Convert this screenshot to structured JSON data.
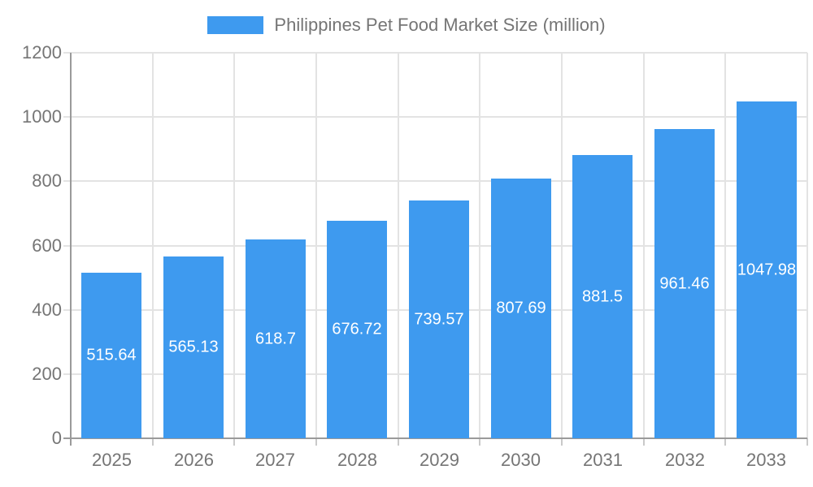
{
  "chart_data": {
    "type": "bar",
    "title": "Philippines Pet Food Market Size (million)",
    "categories": [
      "2025",
      "2026",
      "2027",
      "2028",
      "2029",
      "2030",
      "2031",
      "2032",
      "2033"
    ],
    "values": [
      515.64,
      565.13,
      618.7,
      676.72,
      739.57,
      807.69,
      881.5,
      961.46,
      1047.98
    ],
    "value_labels": [
      "515.64",
      "565.13",
      "618.7",
      "676.72",
      "739.57",
      "807.69",
      "881.5",
      "961.46",
      "1047.98"
    ],
    "xlabel": "",
    "ylabel": "",
    "ylim": [
      0,
      1200
    ],
    "yticks": [
      0,
      200,
      400,
      600,
      800,
      1000,
      1200
    ],
    "grid": true,
    "legend_position": "top",
    "series_name": "Philippines Pet Food Market Size (million)",
    "colors": {
      "bar": "#3E9AEF",
      "grid": "#e3e3e3",
      "axis": "#9a9a9a",
      "tick_text": "#757575",
      "value_label": "#ffffff",
      "background": "#ffffff"
    }
  }
}
